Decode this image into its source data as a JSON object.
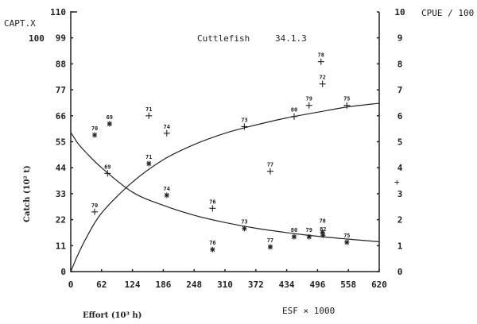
{
  "chart_data": {
    "type": "scatter",
    "title": "Cuttlefish",
    "subtitle": "34.1.3",
    "xlabel": "Effort (10³ h)",
    "xlabel_alt": "ESF × 1000",
    "ylabel": "Catch   (10² t)",
    "ylabel_header": "CAPT.X",
    "ylabel_header_scale": "100",
    "y2label": "CPUE / 100",
    "xlim": [
      0,
      620
    ],
    "ylim": [
      0,
      110
    ],
    "y2lim": [
      0,
      10
    ],
    "x_ticks": [
      "0",
      "62",
      "124",
      "186",
      "248",
      "310",
      "372",
      "434",
      "496",
      "558",
      "620"
    ],
    "y_ticks": [
      "0",
      "11",
      "22",
      "33",
      "44",
      "55",
      "66",
      "77",
      "88",
      "99",
      "110"
    ],
    "y2_ticks": [
      "0",
      "1",
      "2",
      "3",
      "4",
      "5",
      "6",
      "7",
      "8",
      "9",
      "10"
    ],
    "grid": false,
    "series": [
      {
        "name": "Catch",
        "marker": "plus",
        "axis": "left",
        "points": [
          {
            "label": "70",
            "x": 48,
            "y": 25.3
          },
          {
            "label": "69",
            "x": 74,
            "y": 41.6
          },
          {
            "label": "71",
            "x": 157,
            "y": 66.0
          },
          {
            "label": "74",
            "x": 193,
            "y": 58.6
          },
          {
            "label": "76",
            "x": 285,
            "y": 26.8
          },
          {
            "label": "73",
            "x": 349,
            "y": 61.4
          },
          {
            "label": "77",
            "x": 401,
            "y": 42.5
          },
          {
            "label": "80",
            "x": 449,
            "y": 65.7
          },
          {
            "label": "79",
            "x": 479,
            "y": 70.4
          },
          {
            "label": "78",
            "x": 503,
            "y": 88.9
          },
          {
            "label": "72",
            "x": 506,
            "y": 79.5
          },
          {
            "label": "75",
            "x": 555,
            "y": 70.4
          }
        ]
      },
      {
        "name": "CPUE",
        "marker": "star",
        "axis": "right",
        "points": [
          {
            "label": "70",
            "x": 48,
            "y": 5.26
          },
          {
            "label": "69",
            "x": 78,
            "y": 5.69
          },
          {
            "label": "71",
            "x": 157,
            "y": 4.16
          },
          {
            "label": "74",
            "x": 193,
            "y": 2.94
          },
          {
            "label": "76",
            "x": 285,
            "y": 0.85
          },
          {
            "label": "73",
            "x": 349,
            "y": 1.66
          },
          {
            "label": "77",
            "x": 401,
            "y": 0.95
          },
          {
            "label": "80",
            "x": 449,
            "y": 1.34
          },
          {
            "label": "79",
            "x": 479,
            "y": 1.34
          },
          {
            "label": "78",
            "x": 506,
            "y": 1.52
          },
          {
            "label": "82",
            "x": 507,
            "y": 1.4
          },
          {
            "label": "75",
            "x": 555,
            "y": 1.13
          }
        ]
      }
    ],
    "curves": [
      {
        "axis": "left",
        "x": [
          0,
          8,
          15,
          31,
          62,
          124,
          186,
          248,
          310,
          372,
          434,
          496,
          558,
          620
        ],
        "y": [
          0,
          4.1,
          7.4,
          14.2,
          24.8,
          37.9,
          47.4,
          53.8,
          58.6,
          62.1,
          65.1,
          67.5,
          69.8,
          71.3
        ]
      },
      {
        "axis": "right",
        "x": [
          0,
          8,
          15,
          31,
          62,
          124,
          186,
          248,
          310,
          372,
          434,
          496,
          558,
          620
        ],
        "y": [
          5.36,
          5.12,
          4.92,
          4.58,
          4.0,
          3.06,
          2.55,
          2.17,
          1.89,
          1.67,
          1.5,
          1.36,
          1.25,
          1.15
        ]
      }
    ],
    "annotations": [
      "+"
    ]
  }
}
